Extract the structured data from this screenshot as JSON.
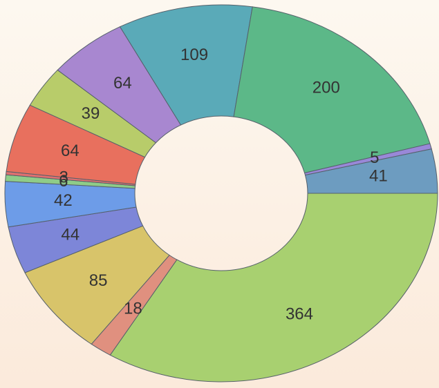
{
  "chart_data": {
    "type": "donut",
    "values": [
      364,
      18,
      85,
      44,
      42,
      6,
      3,
      64,
      39,
      64,
      109,
      200,
      5,
      41
    ],
    "colors": [
      "#a8d070",
      "#e0907f",
      "#d8c46a",
      "#7d86d8",
      "#6d9ce8",
      "#8fcc88",
      "#e07070",
      "#e8705e",
      "#b8cc6a",
      "#a887d0",
      "#5aaab8",
      "#5cb888",
      "#9988d8",
      "#6d9cc0"
    ]
  }
}
